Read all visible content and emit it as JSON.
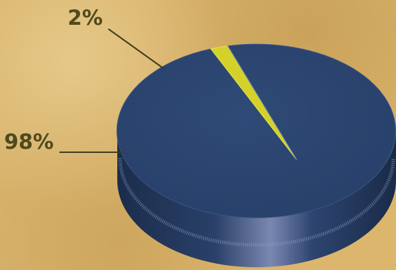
{
  "chart_data": {
    "type": "pie",
    "style": "3d",
    "categories": [
      "",
      ""
    ],
    "values": [
      98,
      2
    ],
    "data_labels": [
      "98%",
      "2%"
    ],
    "colors": {
      "slice_main": "#2c4670",
      "slice_small": "#d4d22a",
      "label_text": "#4f4a1e",
      "leader_line": "#3f3c1c",
      "background": "#d8b36b"
    },
    "legend": "none",
    "title": ""
  }
}
